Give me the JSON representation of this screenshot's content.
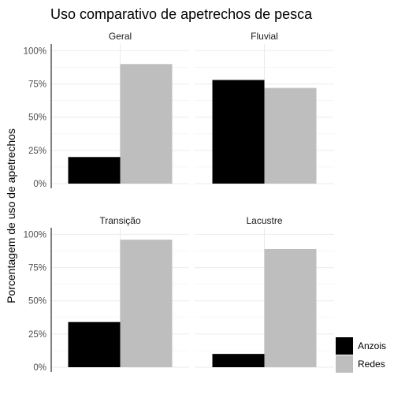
{
  "chart_data": {
    "type": "bar",
    "title": "Uso comparativo de apetrechos de pesca",
    "ylabel": "Porcentagem de uso de apetrechos",
    "xlabel": "",
    "ylim": [
      0,
      100
    ],
    "y_ticks": [
      "0%",
      "25%",
      "50%",
      "75%",
      "100%"
    ],
    "y_tick_values": [
      0,
      25,
      50,
      75,
      100
    ],
    "grid": true,
    "legend_position": "bottom-right",
    "series": [
      {
        "name": "Anzois",
        "color": "#000000"
      },
      {
        "name": "Redes",
        "color": "#bebebe"
      }
    ],
    "panels": [
      {
        "label": "Geral",
        "values": [
          20,
          90
        ]
      },
      {
        "label": "Fluvial",
        "values": [
          78,
          72
        ]
      },
      {
        "label": "Transição",
        "values": [
          34,
          96
        ]
      },
      {
        "label": "Lacustre",
        "values": [
          10,
          89
        ]
      }
    ]
  }
}
